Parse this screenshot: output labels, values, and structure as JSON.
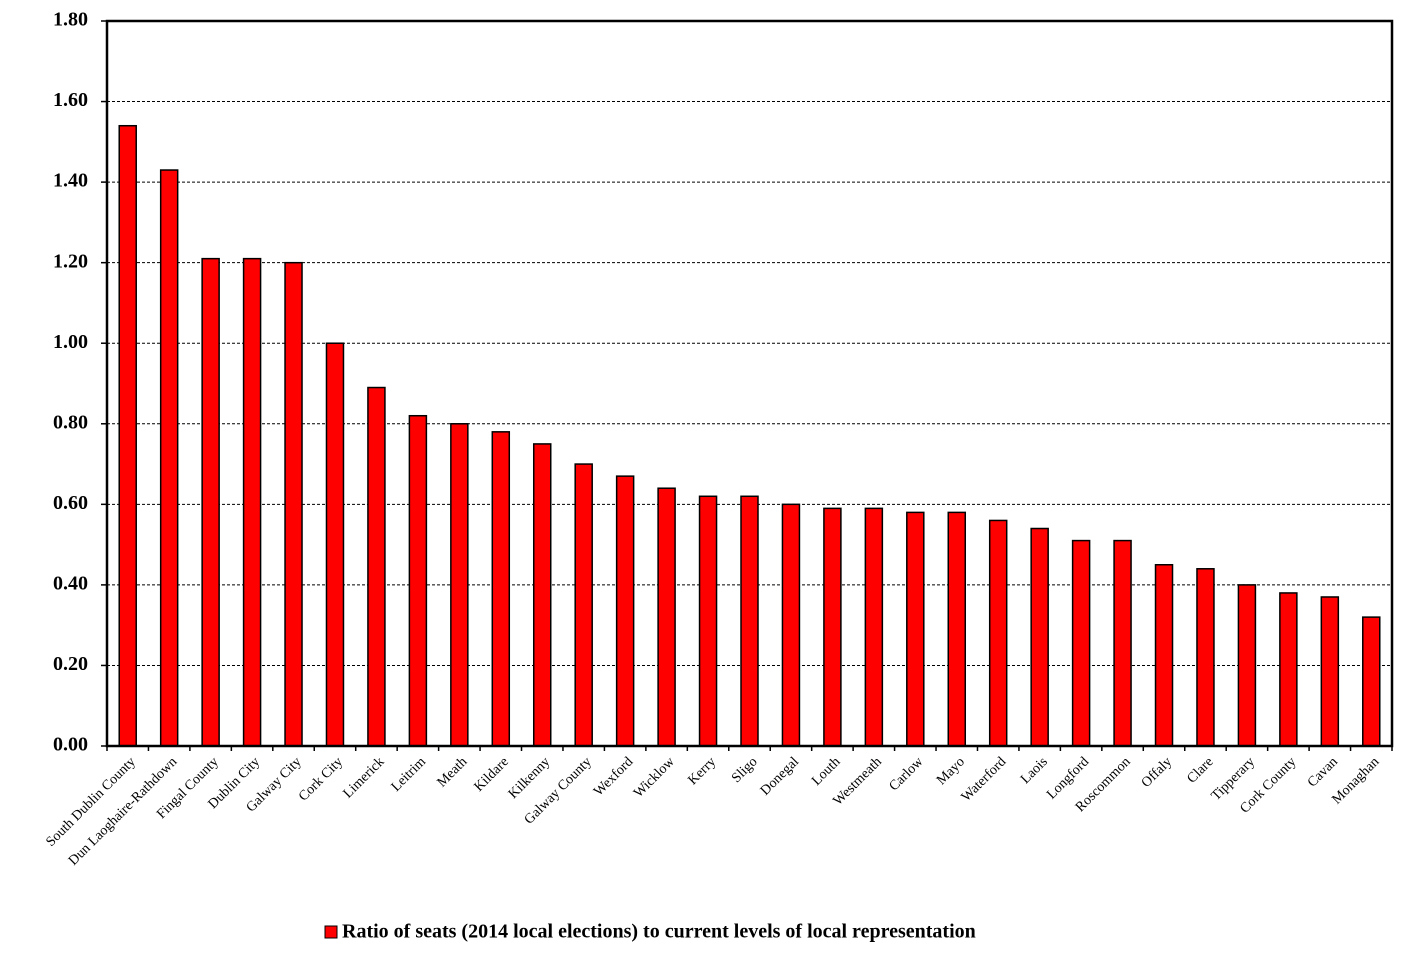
{
  "chart_data": {
    "type": "bar",
    "categories": [
      "South Dublin County",
      "Dun Laoghaire-Rathdown",
      "Fingal County",
      "Dublin City",
      "Galway City",
      "Cork City",
      "Limerick",
      "Leitrim",
      "Meath",
      "Kildare",
      "Kilkenny",
      "Galway County",
      "Wexford",
      "Wicklow",
      "Kerry",
      "Sligo",
      "Donegal",
      "Louth",
      "Westmeath",
      "Carlow",
      "Mayo",
      "Waterford",
      "Laois",
      "Longford",
      "Roscommon",
      "Offaly",
      "Clare",
      "Tipperary",
      "Cork County",
      "Cavan",
      "Monaghan"
    ],
    "series": [
      {
        "name": "Ratio of seats (2014 local elections) to current levels of local representation",
        "color": "#ff0000",
        "values": [
          1.54,
          1.43,
          1.21,
          1.21,
          1.2,
          1.0,
          0.89,
          0.82,
          0.8,
          0.78,
          0.75,
          0.7,
          0.67,
          0.64,
          0.62,
          0.62,
          0.6,
          0.59,
          0.59,
          0.58,
          0.58,
          0.56,
          0.54,
          0.51,
          0.51,
          0.45,
          0.44,
          0.4,
          0.38,
          0.37,
          0.32
        ]
      }
    ],
    "ylim": [
      0,
      1.8
    ],
    "yticks": [
      {
        "value": 0,
        "label": "0.00"
      },
      {
        "value": 0.2,
        "label": "0.20"
      },
      {
        "value": 0.4,
        "label": "0.40"
      },
      {
        "value": 0.6,
        "label": "0.60"
      },
      {
        "value": 0.8,
        "label": "0.80"
      },
      {
        "value": 1.0,
        "label": "1.00"
      },
      {
        "value": 1.2,
        "label": "1.20"
      },
      {
        "value": 1.4,
        "label": "1.40"
      },
      {
        "value": 1.6,
        "label": "1.60"
      },
      {
        "value": 1.8,
        "label": "1.80"
      }
    ],
    "grid": true,
    "legend": "bottom"
  }
}
